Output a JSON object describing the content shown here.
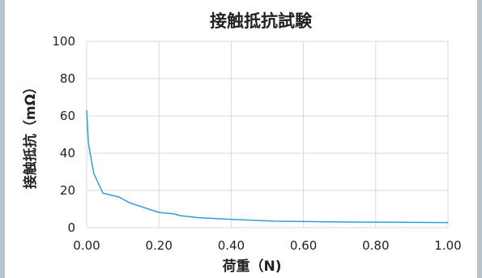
{
  "chart_data": {
    "type": "line",
    "title": "接触抵抗試験",
    "xlabel": "荷重（N)",
    "ylabel": "接触抵抗（mΩ）",
    "xlim": [
      0,
      1.0
    ],
    "ylim": [
      0,
      100
    ],
    "x_ticks": [
      "0.00",
      "0.20",
      "0.40",
      "0.60",
      "0.80",
      "1.00"
    ],
    "y_ticks": [
      "0",
      "20",
      "40",
      "60",
      "80",
      "100"
    ],
    "grid": true,
    "legend": "none",
    "series": [
      {
        "color": "#2e9fd6",
        "x": [
          0.0,
          0.005,
          0.02,
          0.045,
          0.09,
          0.12,
          0.2,
          0.24,
          0.26,
          0.31,
          0.4,
          0.52,
          0.7,
          1.0
        ],
        "y": [
          63,
          45,
          29,
          18.5,
          16.5,
          13.3,
          8.2,
          7.5,
          6.5,
          5.4,
          4.5,
          3.5,
          3.1,
          2.8
        ]
      }
    ]
  }
}
